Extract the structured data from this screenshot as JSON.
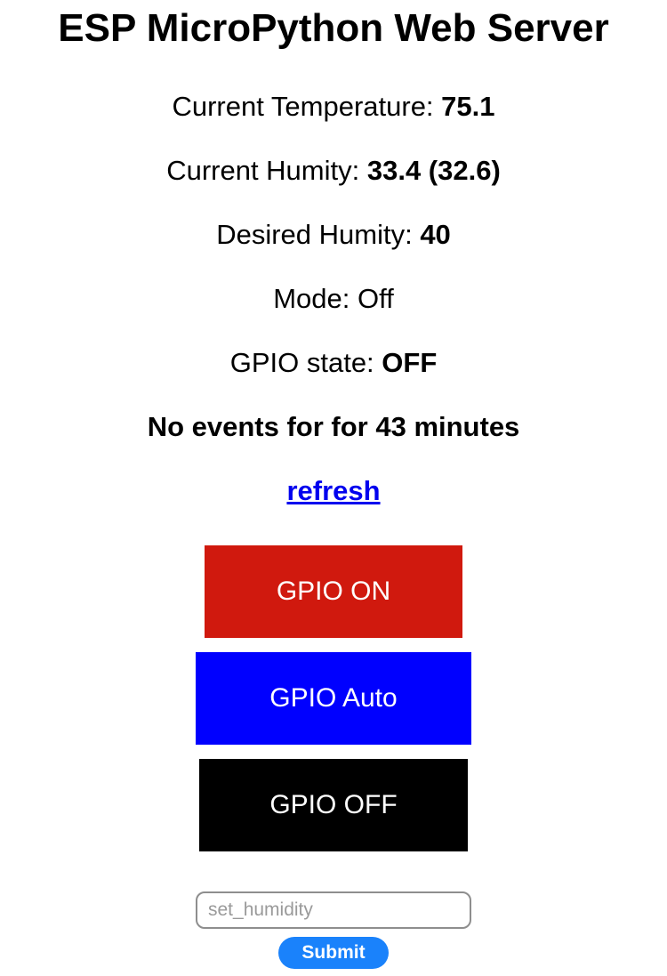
{
  "page": {
    "title": "ESP MicroPython Web Server"
  },
  "stats": {
    "temperature_label": "Current Temperature: ",
    "temperature_value": "75.1",
    "humidity_label": "Current Humity: ",
    "humidity_value": "33.4 (32.6)",
    "desired_label": "Desired Humity: ",
    "desired_value": "40",
    "mode_label": "Mode: ",
    "mode_value": "Off",
    "gpio_label": "GPIO state: ",
    "gpio_value": "OFF",
    "events_text": "No events for for 43 minutes"
  },
  "links": {
    "refresh_label": "refresh"
  },
  "buttons": {
    "on_label": "GPIO ON",
    "auto_label": "GPIO Auto",
    "off_label": "GPIO OFF",
    "submit_label": "Submit"
  },
  "form": {
    "humidity_placeholder": "set_humidity",
    "humidity_value": ""
  },
  "colors": {
    "on_button": "#d0190e",
    "auto_button": "#0000ff",
    "off_button": "#000000",
    "submit_button": "#1a82fb",
    "link": "#0000ee"
  }
}
